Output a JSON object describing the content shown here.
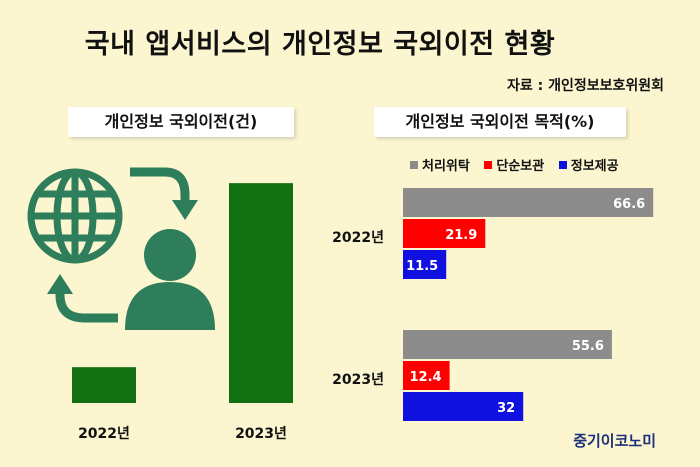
{
  "title": "국내 앱서비스의 개인정보 국외이전 현황",
  "source": "자료 : 개인정보보호위원회",
  "brand": "중기이코노미",
  "icon": "globe-person-transfer-icon",
  "chart_data": [
    {
      "type": "bar",
      "title": "개인정보 국외이전(건)",
      "categories": [
        "2022년",
        "2023년"
      ],
      "values": [
        44,
        270
      ],
      "color": "#127012",
      "ylim": [
        0,
        280
      ]
    },
    {
      "type": "bar",
      "orientation": "horizontal",
      "title": "개인정보 국외이전 목적(%)",
      "categories": [
        "2022년",
        "2023년"
      ],
      "series": [
        {
          "name": "처리위탁",
          "color": "#8c8c8c",
          "values": [
            66.6,
            55.6
          ]
        },
        {
          "name": "단순보관",
          "color": "#ff0000",
          "values": [
            21.9,
            12.4
          ]
        },
        {
          "name": "정보제공",
          "color": "#1010e0",
          "values": [
            11.5,
            32
          ]
        }
      ],
      "xlim": [
        0,
        70
      ],
      "legend": "top"
    }
  ]
}
